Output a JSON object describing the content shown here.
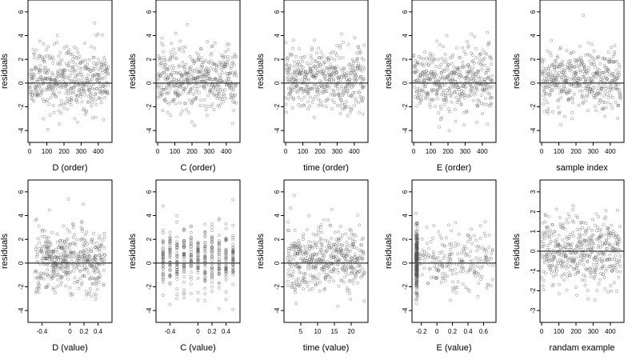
{
  "chart_data": [
    {
      "type": "scatter",
      "xlabel": "D (order)",
      "ylabel": "residuals",
      "xlim": [
        -10,
        480
      ],
      "ylim": [
        -5,
        7
      ],
      "xticks": [
        0,
        100,
        200,
        300,
        400
      ],
      "yticks": [
        -4,
        -2,
        0,
        2,
        4,
        6
      ],
      "hline": 0,
      "x_kind": "index",
      "n": 460,
      "seed": 11
    },
    {
      "type": "scatter",
      "xlabel": "C (order)",
      "ylabel": "residuals",
      "xlim": [
        -10,
        480
      ],
      "ylim": [
        -5,
        7
      ],
      "xticks": [
        0,
        100,
        200,
        300,
        400
      ],
      "yticks": [
        -4,
        -2,
        0,
        2,
        4,
        6
      ],
      "hline": 0,
      "x_kind": "index",
      "n": 460,
      "seed": 23
    },
    {
      "type": "scatter",
      "xlabel": "time (order)",
      "ylabel": "residuals",
      "xlim": [
        -10,
        480
      ],
      "ylim": [
        -5,
        7
      ],
      "xticks": [
        0,
        100,
        200,
        300,
        400
      ],
      "yticks": [
        -4,
        -2,
        0,
        2,
        4,
        6
      ],
      "hline": 0,
      "x_kind": "index",
      "n": 460,
      "seed": 37
    },
    {
      "type": "scatter",
      "xlabel": "E (order)",
      "ylabel": "residuals",
      "xlim": [
        -10,
        480
      ],
      "ylim": [
        -5,
        7
      ],
      "xticks": [
        0,
        100,
        200,
        300,
        400
      ],
      "yticks": [
        -4,
        -2,
        0,
        2,
        4,
        6
      ],
      "hline": 0,
      "x_kind": "index_trend",
      "n": 460,
      "seed": 41
    },
    {
      "type": "scatter",
      "xlabel": "sample index",
      "ylabel": "residuals",
      "xlim": [
        -10,
        480
      ],
      "ylim": [
        -5,
        7
      ],
      "xticks": [
        0,
        100,
        200,
        300,
        400
      ],
      "yticks": [
        -4,
        -2,
        0,
        2,
        4,
        6
      ],
      "hline": 0,
      "x_kind": "index",
      "n": 460,
      "seed": 53
    },
    {
      "type": "scatter",
      "xlabel": "D (value)",
      "ylabel": "residuals",
      "xlim": [
        -0.6,
        0.6
      ],
      "ylim": [
        -5,
        7
      ],
      "xticks": [
        -0.4,
        0,
        0.2,
        0.4
      ],
      "ytick_skip": [],
      "yticks": [
        -4,
        -2,
        0,
        2,
        4,
        6
      ],
      "hline": 0,
      "x_kind": "uniform",
      "xrange": [
        -0.5,
        0.5
      ],
      "n": 460,
      "seed": 61
    },
    {
      "type": "scatter",
      "xlabel": "C (value)",
      "ylabel": "residuals",
      "xlim": [
        -0.6,
        0.6
      ],
      "ylim": [
        -5,
        7
      ],
      "xticks": [
        -0.4,
        0,
        0.2,
        0.4
      ],
      "yticks": [
        -4,
        -2,
        0,
        2,
        4,
        6
      ],
      "hline": 0,
      "x_kind": "discrete",
      "levels": [
        -0.5,
        -0.4,
        -0.3,
        -0.2,
        -0.1,
        0,
        0.1,
        0.2,
        0.3,
        0.4,
        0.5
      ],
      "n": 460,
      "seed": 71
    },
    {
      "type": "scatter",
      "xlabel": "time (value)",
      "ylabel": "residuals",
      "xlim": [
        0,
        25
      ],
      "ylim": [
        -5,
        7
      ],
      "xticks": [
        5,
        10,
        15,
        20
      ],
      "yticks": [
        -4,
        -2,
        0,
        2,
        4,
        6
      ],
      "hline": 0,
      "x_kind": "uniform",
      "xrange": [
        1,
        24
      ],
      "n": 460,
      "seed": 83
    },
    {
      "type": "scatter",
      "xlabel": "E (value)",
      "ylabel": "residuals",
      "xlim": [
        -0.32,
        0.76
      ],
      "ylim": [
        -5,
        7
      ],
      "xticks": [
        -0.2,
        0,
        0.2,
        0.4,
        0.6
      ],
      "yticks": [
        -4,
        -2,
        0,
        2,
        4,
        6
      ],
      "hline": 0,
      "x_kind": "skewed",
      "xrange": [
        -0.27,
        0.72
      ],
      "n": 460,
      "seed": 97
    },
    {
      "type": "scatter",
      "xlabel": "randam example",
      "ylabel": "residuals",
      "xlim": [
        -10,
        480
      ],
      "ylim": [
        -3.6,
        3.6
      ],
      "xticks": [
        0,
        100,
        200,
        300,
        400
      ],
      "yticks": [
        -3,
        -2,
        -1,
        0,
        1,
        2,
        3
      ],
      "hline": 0,
      "x_kind": "normal_index",
      "n": 460,
      "seed": 101
    }
  ]
}
